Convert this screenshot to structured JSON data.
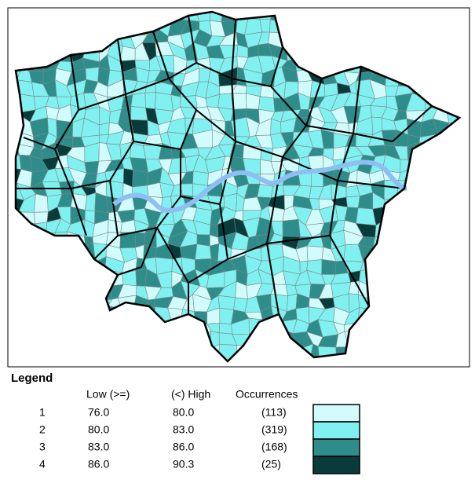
{
  "legend": {
    "title": "Legend",
    "headers": [
      "Low (>=)",
      "(<) High",
      "Occurrences"
    ],
    "rows": [
      {
        "class": "1",
        "low": "76.0",
        "high": "80.0",
        "occurrences": "(113)",
        "color": "#d2fbfb"
      },
      {
        "class": "2",
        "low": "80.0",
        "high": "83.0",
        "occurrences": "(319)",
        "color": "#80f0f0"
      },
      {
        "class": "3",
        "low": "83.0",
        "high": "86.0",
        "occurrences": "(168)",
        "color": "#2e8c8a"
      },
      {
        "class": "4",
        "low": "86.0",
        "high": "90.3",
        "occurrences": "(25)",
        "color": "#0a3b3b"
      }
    ]
  }
}
